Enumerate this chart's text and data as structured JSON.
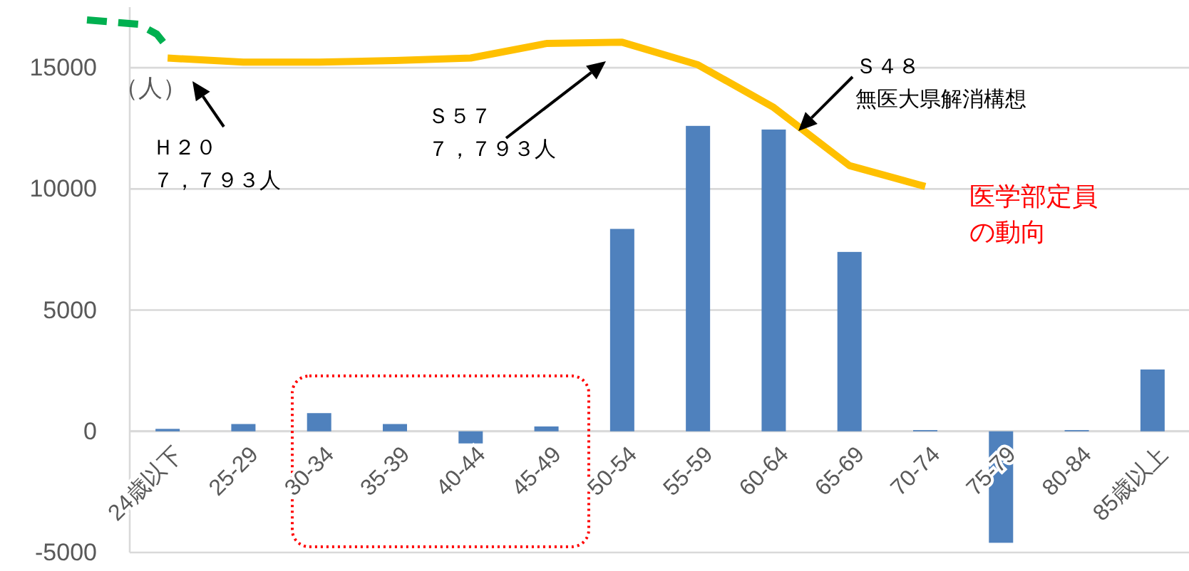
{
  "chart_data": {
    "type": "bar",
    "categories": [
      "24歳以下",
      "25-29",
      "30-34",
      "35-39",
      "40-44",
      "45-49",
      "50-54",
      "55-59",
      "60-64",
      "65-69",
      "70-74",
      "75-79",
      "80-84",
      "85歳以上"
    ],
    "ylabel": "（人）",
    "ylim": [
      -5000,
      17500
    ],
    "yticks": [
      -5000,
      0,
      5000,
      10000,
      15000
    ],
    "grid": "y",
    "series": [
      {
        "type": "bar",
        "color": "#4f81bd",
        "values": [
          100,
          300,
          750,
          300,
          -500,
          200,
          8350,
          12600,
          12450,
          7400,
          50,
          -4600,
          50,
          2550
        ]
      },
      {
        "type": "line",
        "color": "#ffc000",
        "line_style": "solid",
        "values": [
          15400,
          15230,
          15230,
          15300,
          15400,
          16000,
          16050,
          15120,
          13360,
          10960,
          10100,
          null,
          null,
          null
        ]
      }
    ],
    "annotations": [
      "Ｈ２０",
      "７，７９３人",
      "Ｓ５７",
      "７，７９３人",
      "Ｓ４８",
      "無医大県解消構想",
      "医学部定員",
      "の動向"
    ]
  }
}
